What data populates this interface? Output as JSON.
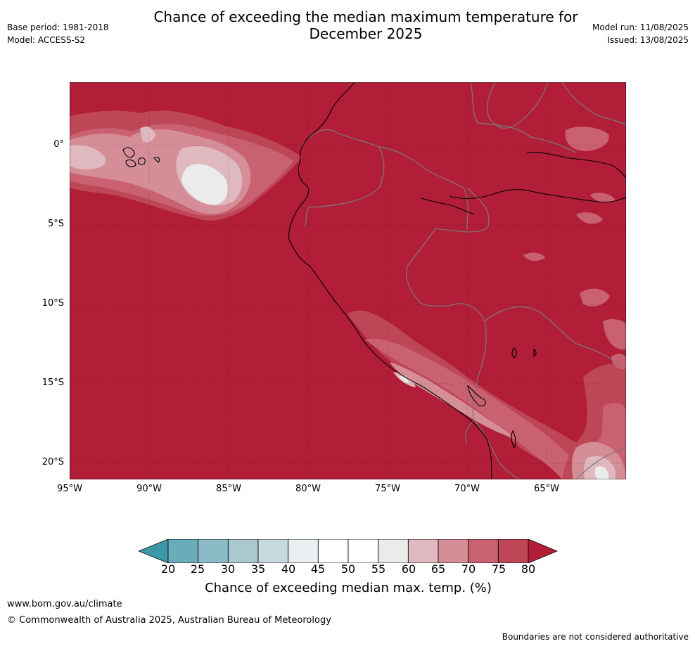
{
  "title": "Chance of exceeding the median maximum temperature for\nDecember 2025",
  "meta_left": [
    "Base period: 1981-2018",
    "Model: ACCESS-S2"
  ],
  "meta_right": [
    "Model run: 11/08/2025",
    "Issued: 13/08/2025"
  ],
  "map": {
    "lon_range": [
      -95,
      -60
    ],
    "lat_range": [
      -21,
      4
    ],
    "lat_ticks": [
      "0°",
      "5°S",
      "10°S",
      "15°S",
      "20°S"
    ],
    "lon_ticks": [
      "95°W",
      "90°W",
      "85°W",
      "80°W",
      "75°W",
      "70°W",
      "65°W"
    ],
    "background_color": "#b21e38",
    "coastline_color": "#000000",
    "border_color": "#777777"
  },
  "legend": {
    "title": "Chance of exceeding median max. temp. (%)",
    "ticks": [
      "20",
      "25",
      "30",
      "35",
      "40",
      "45",
      "50",
      "55",
      "60",
      "65",
      "70",
      "75",
      "80"
    ],
    "colors": [
      "#3c98a6",
      "#6aacb9",
      "#8bbbc6",
      "#a9c9cf",
      "#c6d9dd",
      "#e9eff1",
      "#ffffff",
      "#ffffff",
      "#ebebeb",
      "#dfb9bf",
      "#d58e98",
      "#c96170",
      "#bd4756",
      "#b21e38"
    ]
  },
  "footer": {
    "url": "www.bom.gov.au/climate",
    "copyright": "© Commonwealth of Australia 2025, Australian Bureau of Meteorology",
    "note": "Boundaries are not considered authoritative"
  }
}
